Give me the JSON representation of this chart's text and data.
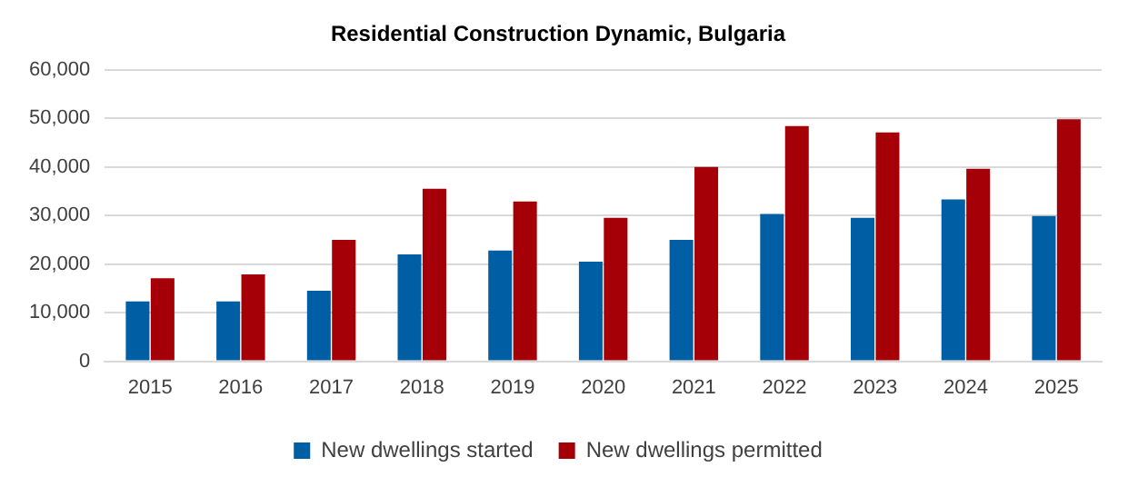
{
  "chart_data": {
    "type": "bar",
    "title": "Residential Construction Dynamic, Bulgaria",
    "categories": [
      "2015",
      "2016",
      "2017",
      "2018",
      "2019",
      "2020",
      "2021",
      "2022",
      "2023",
      "2024",
      "2025"
    ],
    "series": [
      {
        "name": "New dwellings started",
        "color": "#005ea5",
        "values": [
          12300,
          12300,
          14500,
          22000,
          22800,
          20500,
          25000,
          30300,
          29500,
          33300,
          29900
        ]
      },
      {
        "name": "New dwellings permitted",
        "color": "#a50008",
        "values": [
          17100,
          17900,
          25000,
          35500,
          32900,
          29500,
          40000,
          48400,
          47100,
          39600,
          49800
        ]
      }
    ],
    "ylim": [
      0,
      60000
    ],
    "yticks": [
      0,
      {
        "value": 10000,
        "label": "10,000"
      },
      {
        "value": 20000,
        "label": "20,000"
      },
      {
        "value": 30000,
        "label": "30,000"
      },
      {
        "value": 40000,
        "label": "40,000"
      },
      {
        "value": 50000,
        "label": "50,000"
      },
      {
        "value": 60000,
        "label": "60,000"
      }
    ],
    "grid": "y",
    "legend": "bottom"
  }
}
